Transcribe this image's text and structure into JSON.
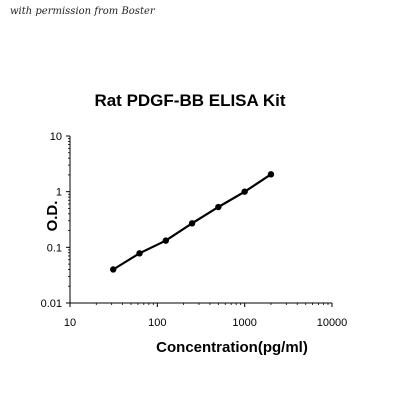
{
  "watermark": "with permission from Boster",
  "chart_data": {
    "type": "line",
    "title": "Rat PDGF-BB  ELISA Kit",
    "xlabel": "Concentration(pg/ml)",
    "ylabel": "O.D.",
    "xscale": "log",
    "yscale": "log",
    "xlim": [
      10,
      10000
    ],
    "ylim": [
      0.01,
      10
    ],
    "xticks": [
      "10",
      "100",
      "1000",
      "10000"
    ],
    "yticks": [
      "0.01",
      "0.1",
      "1",
      "10"
    ],
    "grid": false,
    "legend": "none",
    "series": [
      {
        "x": [
          31.25,
          62.5,
          125,
          250,
          500,
          1000,
          2000
        ],
        "y": [
          0.04,
          0.078,
          0.132,
          0.27,
          0.53,
          1.0,
          2.05
        ]
      }
    ],
    "colors": {
      "line": "#000000",
      "marker": "#000000",
      "axis": "#000000"
    }
  }
}
